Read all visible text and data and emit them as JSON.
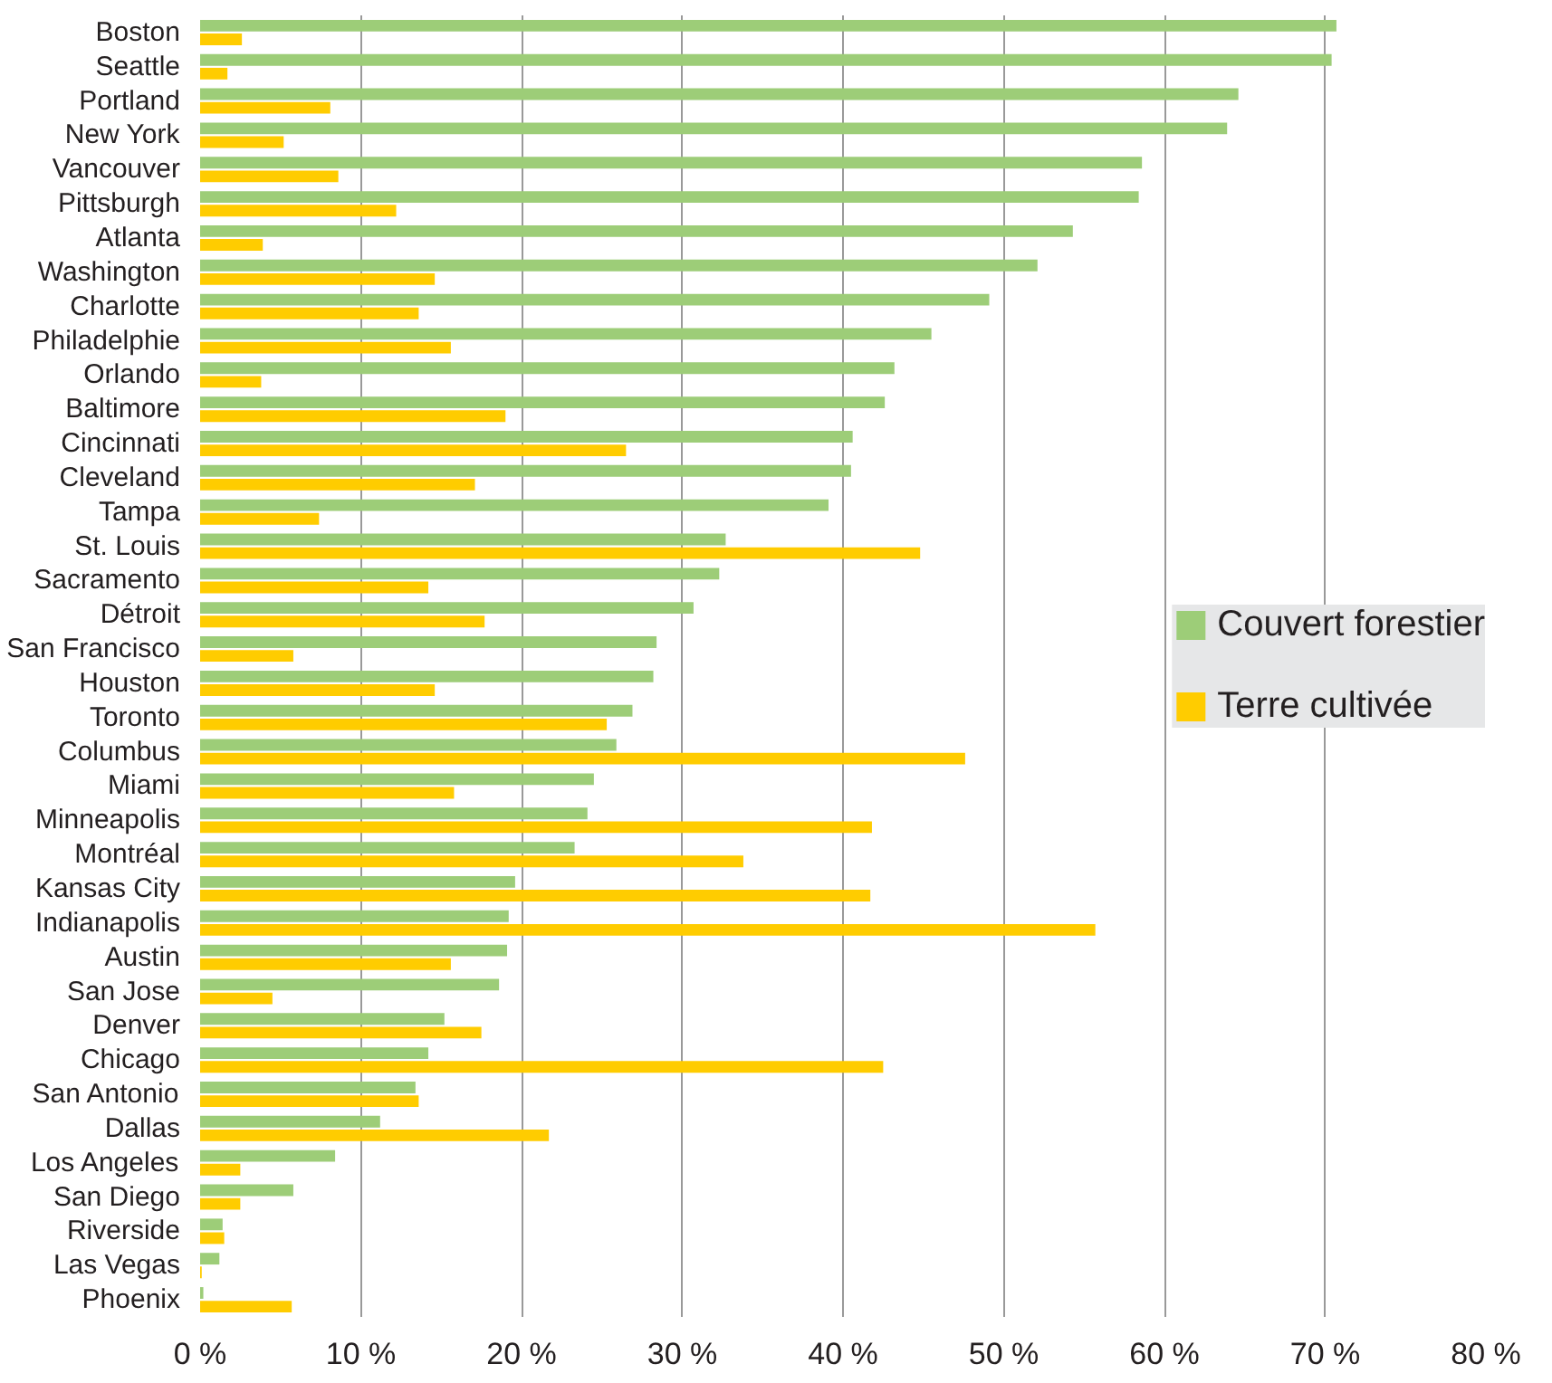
{
  "chart_data": {
    "type": "bar",
    "orientation": "horizontal",
    "categories": [
      "Boston",
      "Seattle",
      "Portland",
      "New York",
      "Vancouver",
      "Pittsburgh",
      "Atlanta",
      "Washington",
      "Charlotte",
      "Philadelphie",
      "Orlando",
      "Baltimore",
      "Cincinnati",
      "Cleveland",
      "Tampa",
      "St. Louis",
      "Sacramento",
      "Détroit",
      "San Francisco",
      "Houston",
      "Toronto",
      "Columbus",
      "Miami",
      "Minneapolis",
      "Montréal",
      "Kansas City",
      "Indianapolis",
      "Austin",
      "San Jose",
      "Denver",
      "Chicago",
      "San Antonio",
      "Dallas",
      "Los Angeles",
      "San Diego",
      "Riverside",
      "Las Vegas",
      "Phoenix"
    ],
    "series": [
      {
        "name": "Couvert forestier",
        "color": "#9dcd78",
        "values": [
          70.7,
          70.4,
          64.6,
          63.9,
          58.6,
          58.4,
          54.3,
          52.1,
          49.1,
          45.5,
          43.2,
          42.6,
          40.6,
          40.5,
          39.1,
          32.7,
          32.3,
          30.7,
          28.4,
          28.2,
          26.9,
          25.9,
          24.5,
          24.1,
          23.3,
          19.6,
          19.2,
          19.1,
          18.6,
          15.2,
          14.2,
          13.4,
          11.2,
          8.4,
          5.8,
          1.4,
          1.2,
          0.2
        ]
      },
      {
        "name": "Terre cultivée",
        "color": "#ffcc00",
        "values": [
          2.6,
          1.7,
          8.1,
          5.2,
          8.6,
          12.2,
          3.9,
          14.6,
          13.6,
          15.6,
          3.8,
          19.0,
          26.5,
          17.1,
          7.4,
          44.8,
          14.2,
          17.7,
          5.8,
          14.6,
          25.3,
          47.6,
          15.8,
          41.8,
          33.8,
          41.7,
          55.7,
          15.6,
          4.5,
          17.5,
          42.5,
          13.6,
          21.7,
          2.5,
          2.5,
          1.5,
          0.1,
          5.7
        ]
      }
    ],
    "xlim": [
      0,
      80
    ],
    "xticks": [
      {
        "value": 0,
        "label": "0 %"
      },
      {
        "value": 10,
        "label": "10 %"
      },
      {
        "value": 20,
        "label": "20 %"
      },
      {
        "value": 30,
        "label": "30 %"
      },
      {
        "value": 40,
        "label": "40 %"
      },
      {
        "value": 50,
        "label": "50 %"
      },
      {
        "value": 60,
        "label": "60 %"
      },
      {
        "value": 70,
        "label": "70 %"
      },
      {
        "value": 80,
        "label": "80 %"
      }
    ],
    "grid": "x",
    "legend": "right"
  }
}
